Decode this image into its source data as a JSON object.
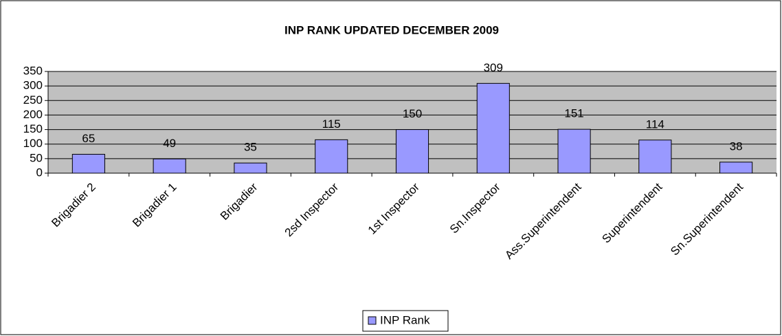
{
  "chart_data": {
    "type": "bar",
    "title": "INP RANK UPDATED DECEMBER 2009",
    "categories": [
      "Brigadier 2",
      "Brigadier 1",
      "Brigadier",
      "2sd Inspector",
      "1st Inspector",
      "Sn.Inspector",
      "Ass.Superintendent",
      "Superintendent",
      "Sn.Superintendent"
    ],
    "series": [
      {
        "name": "INP Rank",
        "color": "#9999ff",
        "values": [
          65,
          49,
          35,
          115,
          150,
          309,
          151,
          114,
          38
        ]
      }
    ],
    "ylim": [
      0,
      350
    ],
    "yticks": [
      0,
      50,
      100,
      150,
      200,
      250,
      300,
      350
    ],
    "grid": true,
    "legend": "bottom"
  }
}
